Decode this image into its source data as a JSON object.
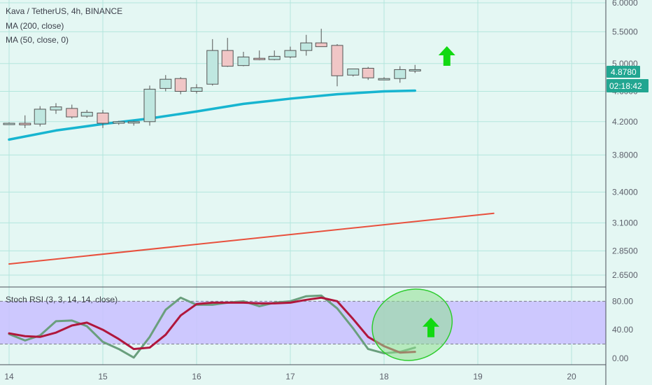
{
  "header": {
    "symbol": "Kava / TetherUS, 4h, BINANCE",
    "ma200": "MA (200, close)",
    "ma50": "MA (50, close, 0)"
  },
  "colors": {
    "background": "#e4f7f3",
    "grid": "#b3e6dd",
    "axis_text": "#5d606b",
    "candle_up": "#bfe7e0",
    "candle_down": "#f0c6c6",
    "candle_border": "#555555",
    "ma50": "#17b5d0",
    "ma200": "#e8503d",
    "stoch_k": "#6a9f7d",
    "stoch_d": "#b0173c",
    "stoch_band": "#c9c0ff",
    "arrow": "#12d912",
    "ellipse_fill": "#8fe08f",
    "ellipse_stroke": "#2ecc2e",
    "price_label_bg": "#22a691"
  },
  "chart_data": [
    {
      "type": "candlestick",
      "title": "Kava / TetherUS, 4h, BINANCE",
      "y_scale": "log",
      "y_ticks": [
        6.0,
        5.5,
        5.0,
        4.6,
        4.2,
        3.8,
        3.4,
        3.1,
        2.85,
        2.65
      ],
      "y_tick_labels": [
        "6.0000",
        "5.5000",
        "5.0000",
        "4.6000",
        "4.2000",
        "3.8000",
        "3.4000",
        "3.1000",
        "2.8500",
        "2.6500"
      ],
      "x_ticks": [
        14,
        15,
        16,
        17,
        18,
        19,
        20
      ],
      "x_tick_labels": [
        "14",
        "15",
        "16",
        "17",
        "18",
        "19",
        "20"
      ],
      "grid": true,
      "current_price": "4.8780",
      "countdown": "02:18:42",
      "candles": [
        {
          "x": 14.0,
          "o": 4.18,
          "h": 4.19,
          "l": 4.16,
          "c": 4.18
        },
        {
          "x": 14.17,
          "o": 4.18,
          "h": 4.28,
          "l": 4.12,
          "c": 4.16
        },
        {
          "x": 14.33,
          "o": 4.17,
          "h": 4.4,
          "l": 4.14,
          "c": 4.36
        },
        {
          "x": 14.5,
          "o": 4.35,
          "h": 4.44,
          "l": 4.3,
          "c": 4.39
        },
        {
          "x": 14.67,
          "o": 4.37,
          "h": 4.42,
          "l": 4.24,
          "c": 4.26
        },
        {
          "x": 14.83,
          "o": 4.27,
          "h": 4.35,
          "l": 4.25,
          "c": 4.32
        },
        {
          "x": 15.0,
          "o": 4.31,
          "h": 4.35,
          "l": 4.12,
          "c": 4.18
        },
        {
          "x": 15.17,
          "o": 4.18,
          "h": 4.21,
          "l": 4.16,
          "c": 4.2
        },
        {
          "x": 15.33,
          "o": 4.19,
          "h": 4.21,
          "l": 4.15,
          "c": 4.2
        },
        {
          "x": 15.5,
          "o": 4.2,
          "h": 4.68,
          "l": 4.15,
          "c": 4.63
        },
        {
          "x": 15.67,
          "o": 4.64,
          "h": 4.83,
          "l": 4.6,
          "c": 4.77
        },
        {
          "x": 15.83,
          "o": 4.78,
          "h": 4.8,
          "l": 4.56,
          "c": 4.6
        },
        {
          "x": 16.0,
          "o": 4.6,
          "h": 4.7,
          "l": 4.57,
          "c": 4.65
        },
        {
          "x": 16.17,
          "o": 4.7,
          "h": 5.38,
          "l": 4.68,
          "c": 5.2
        },
        {
          "x": 16.33,
          "o": 5.2,
          "h": 5.4,
          "l": 4.95,
          "c": 4.96
        },
        {
          "x": 16.5,
          "o": 4.97,
          "h": 5.18,
          "l": 4.96,
          "c": 5.1
        },
        {
          "x": 16.67,
          "o": 5.08,
          "h": 5.2,
          "l": 5.05,
          "c": 5.06
        },
        {
          "x": 16.83,
          "o": 5.06,
          "h": 5.2,
          "l": 5.05,
          "c": 5.11
        },
        {
          "x": 17.0,
          "o": 5.1,
          "h": 5.26,
          "l": 5.08,
          "c": 5.2
        },
        {
          "x": 17.17,
          "o": 5.2,
          "h": 5.45,
          "l": 5.12,
          "c": 5.32
        },
        {
          "x": 17.33,
          "o": 5.32,
          "h": 5.55,
          "l": 5.26,
          "c": 5.26
        },
        {
          "x": 17.5,
          "o": 5.28,
          "h": 5.3,
          "l": 4.67,
          "c": 4.82
        },
        {
          "x": 17.67,
          "o": 4.83,
          "h": 4.92,
          "l": 4.81,
          "c": 4.92
        },
        {
          "x": 17.83,
          "o": 4.93,
          "h": 4.95,
          "l": 4.76,
          "c": 4.79
        },
        {
          "x": 18.0,
          "o": 4.78,
          "h": 4.8,
          "l": 4.76,
          "c": 4.78
        },
        {
          "x": 18.17,
          "o": 4.78,
          "h": 4.96,
          "l": 4.72,
          "c": 4.91
        },
        {
          "x": 18.33,
          "o": 4.89,
          "h": 4.98,
          "l": 4.86,
          "c": 4.91
        }
      ],
      "series": [
        {
          "name": "MA (50, close, 0)",
          "x": [
            14.0,
            14.5,
            15.0,
            15.5,
            16.0,
            16.5,
            17.0,
            17.5,
            18.0,
            18.33
          ],
          "values": [
            3.98,
            4.09,
            4.17,
            4.24,
            4.33,
            4.43,
            4.5,
            4.56,
            4.6,
            4.61
          ]
        },
        {
          "name": "MA (200, close)",
          "x": [
            14.0,
            19.17
          ],
          "values": [
            2.74,
            3.19
          ]
        }
      ],
      "annotations": [
        "green up arrow"
      ]
    },
    {
      "type": "line",
      "title": "Stoch RSI (3, 3, 14, 14, close)",
      "y_ticks": [
        0,
        40,
        80
      ],
      "y_tick_labels": [
        "0.00",
        "40.00",
        "80.00"
      ],
      "ylim": [
        -8,
        98
      ],
      "band": [
        20,
        80
      ],
      "grid": true,
      "series": [
        {
          "name": "K",
          "x": [
            14.0,
            14.17,
            14.33,
            14.5,
            14.67,
            14.83,
            15.0,
            15.17,
            15.33,
            15.5,
            15.67,
            15.83,
            16.0,
            16.17,
            16.33,
            16.5,
            16.67,
            16.83,
            17.0,
            17.17,
            17.33,
            17.5,
            17.67,
            17.83,
            18.0,
            18.17,
            18.33
          ],
          "values": [
            34,
            25,
            32,
            52,
            53,
            45,
            23,
            13,
            1,
            30,
            68,
            85,
            75,
            75,
            78,
            80,
            73,
            78,
            80,
            87,
            88,
            70,
            42,
            13,
            7,
            9,
            15
          ]
        },
        {
          "name": "D",
          "x": [
            14.0,
            14.17,
            14.33,
            14.5,
            14.67,
            14.83,
            15.0,
            15.17,
            15.33,
            15.5,
            15.67,
            15.83,
            16.0,
            16.17,
            16.33,
            16.5,
            16.67,
            16.83,
            17.0,
            17.17,
            17.33,
            17.5,
            17.67,
            17.83,
            18.0,
            18.17,
            18.33
          ],
          "values": [
            35,
            31,
            30,
            36,
            46,
            50,
            40,
            27,
            13,
            15,
            33,
            60,
            76,
            78,
            78,
            78,
            77,
            77,
            78,
            82,
            85,
            80,
            55,
            30,
            17,
            8,
            9
          ]
        }
      ],
      "annotations": [
        "green ellipse",
        "green up arrow"
      ]
    }
  ]
}
